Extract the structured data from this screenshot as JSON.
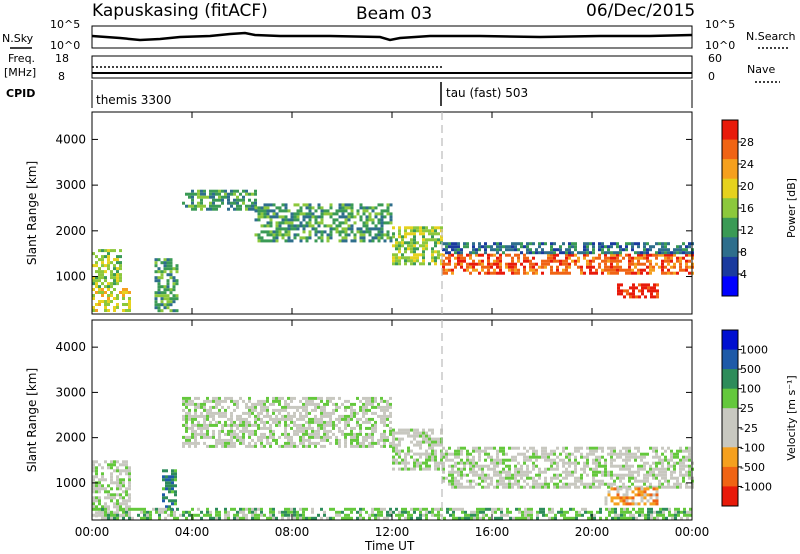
{
  "header": {
    "station": "Kapuskasing (fitACF)",
    "beam": "Beam 03",
    "date": "06/Dec/2015"
  },
  "panels": {
    "nsky_label": "N.Sky",
    "nsky_ticks": [
      "10^5",
      "10^0"
    ],
    "nsearch_label": "N.Search",
    "nsearch_ticks": [
      "10^5",
      "10^0"
    ],
    "freq_label": "Freq.",
    "freq_unit": "[MHz]",
    "freq_ticks": [
      "18",
      "8"
    ],
    "nave_label": "Nave",
    "nave_ticks": [
      "60",
      "0"
    ],
    "cpid_label": "CPID",
    "cpid_modes": [
      "themis 3300",
      "tau (fast) 503"
    ]
  },
  "colors": {
    "power": [
      "#0000ff",
      "#1a3a9e",
      "#2e6e8c",
      "#3a9a55",
      "#8cc83c",
      "#e6d21e",
      "#f5a01e",
      "#f06414",
      "#e81a0a"
    ],
    "velocity": [
      "#0010d0",
      "#1e5aa8",
      "#2e8c5a",
      "#64c83c",
      "#c8c8c0",
      "#c8c8c0",
      "#f5a01e",
      "#f06414",
      "#e81a0a"
    ]
  },
  "chart_data": [
    {
      "type": "heatmap",
      "name": "power",
      "ylabel": "Slant Range [km]",
      "xlabel": "Time UT",
      "x_ticks": [
        "00:00",
        "04:00",
        "08:00",
        "12:00",
        "16:00",
        "20:00",
        "00:00"
      ],
      "y_ticks": [
        "1000",
        "2000",
        "3000",
        "4000"
      ],
      "xlim": [
        0,
        24
      ],
      "ylim": [
        180,
        4600
      ],
      "colorbar_label": "Power [dB]",
      "colorbar_ticks": [
        "4",
        "8",
        "12",
        "16",
        "20",
        "24",
        "28"
      ],
      "mode_change_hour": 14,
      "echo_bands": [
        {
          "t0": 0.0,
          "t1": 1.2,
          "r0": 800,
          "r1": 1600,
          "level": 4
        },
        {
          "t0": 0.0,
          "t1": 1.5,
          "r0": 250,
          "r1": 750,
          "level": 5
        },
        {
          "t0": 2.5,
          "t1": 3.4,
          "r0": 250,
          "r1": 1400,
          "level": 3
        },
        {
          "t0": 3.6,
          "t1": 6.5,
          "r0": 2500,
          "r1": 2900,
          "level": 3
        },
        {
          "t0": 6.5,
          "t1": 12.0,
          "r0": 1800,
          "r1": 2600,
          "level": 3
        },
        {
          "t0": 12.0,
          "t1": 14.0,
          "r0": 1300,
          "r1": 2100,
          "level": 4
        },
        {
          "t0": 14.0,
          "t1": 24.0,
          "r0": 1050,
          "r1": 1500,
          "level": 7
        },
        {
          "t0": 14.0,
          "t1": 24.0,
          "r0": 1550,
          "r1": 1750,
          "level": 2
        },
        {
          "t0": 21.0,
          "t1": 22.6,
          "r0": 550,
          "r1": 850,
          "level": 8
        }
      ]
    },
    {
      "type": "heatmap",
      "name": "velocity",
      "ylabel": "Slant Range [km]",
      "xlabel": "Time UT",
      "x_ticks": [
        "00:00",
        "04:00",
        "08:00",
        "12:00",
        "16:00",
        "20:00",
        "00:00"
      ],
      "y_ticks": [
        "1000",
        "2000",
        "3000",
        "4000"
      ],
      "xlim": [
        0,
        24
      ],
      "ylim": [
        180,
        4600
      ],
      "colorbar_label": "Velocity [m s⁻¹]",
      "colorbar_ticks": [
        "1000",
        "500",
        "100",
        "25",
        "-25",
        "-100",
        "-500",
        "-1000"
      ],
      "mode_change_hour": 14,
      "echo_bands": [
        {
          "t0": 0.0,
          "t1": 1.5,
          "r0": 300,
          "r1": 1500,
          "level": 4
        },
        {
          "t0": 2.8,
          "t1": 3.3,
          "r0": 400,
          "r1": 1300,
          "level": 2
        },
        {
          "t0": 3.6,
          "t1": 12.0,
          "r0": 1800,
          "r1": 2900,
          "level": 4
        },
        {
          "t0": 12.0,
          "t1": 14.0,
          "r0": 1300,
          "r1": 2200,
          "level": 4
        },
        {
          "t0": 14.0,
          "t1": 24.0,
          "r0": 900,
          "r1": 1800,
          "level": 4
        },
        {
          "t0": 20.5,
          "t1": 22.6,
          "r0": 550,
          "r1": 900,
          "level": 6
        },
        {
          "t0": 0.0,
          "t1": 24.0,
          "r0": 200,
          "r1": 450,
          "level": 3
        }
      ]
    }
  ]
}
